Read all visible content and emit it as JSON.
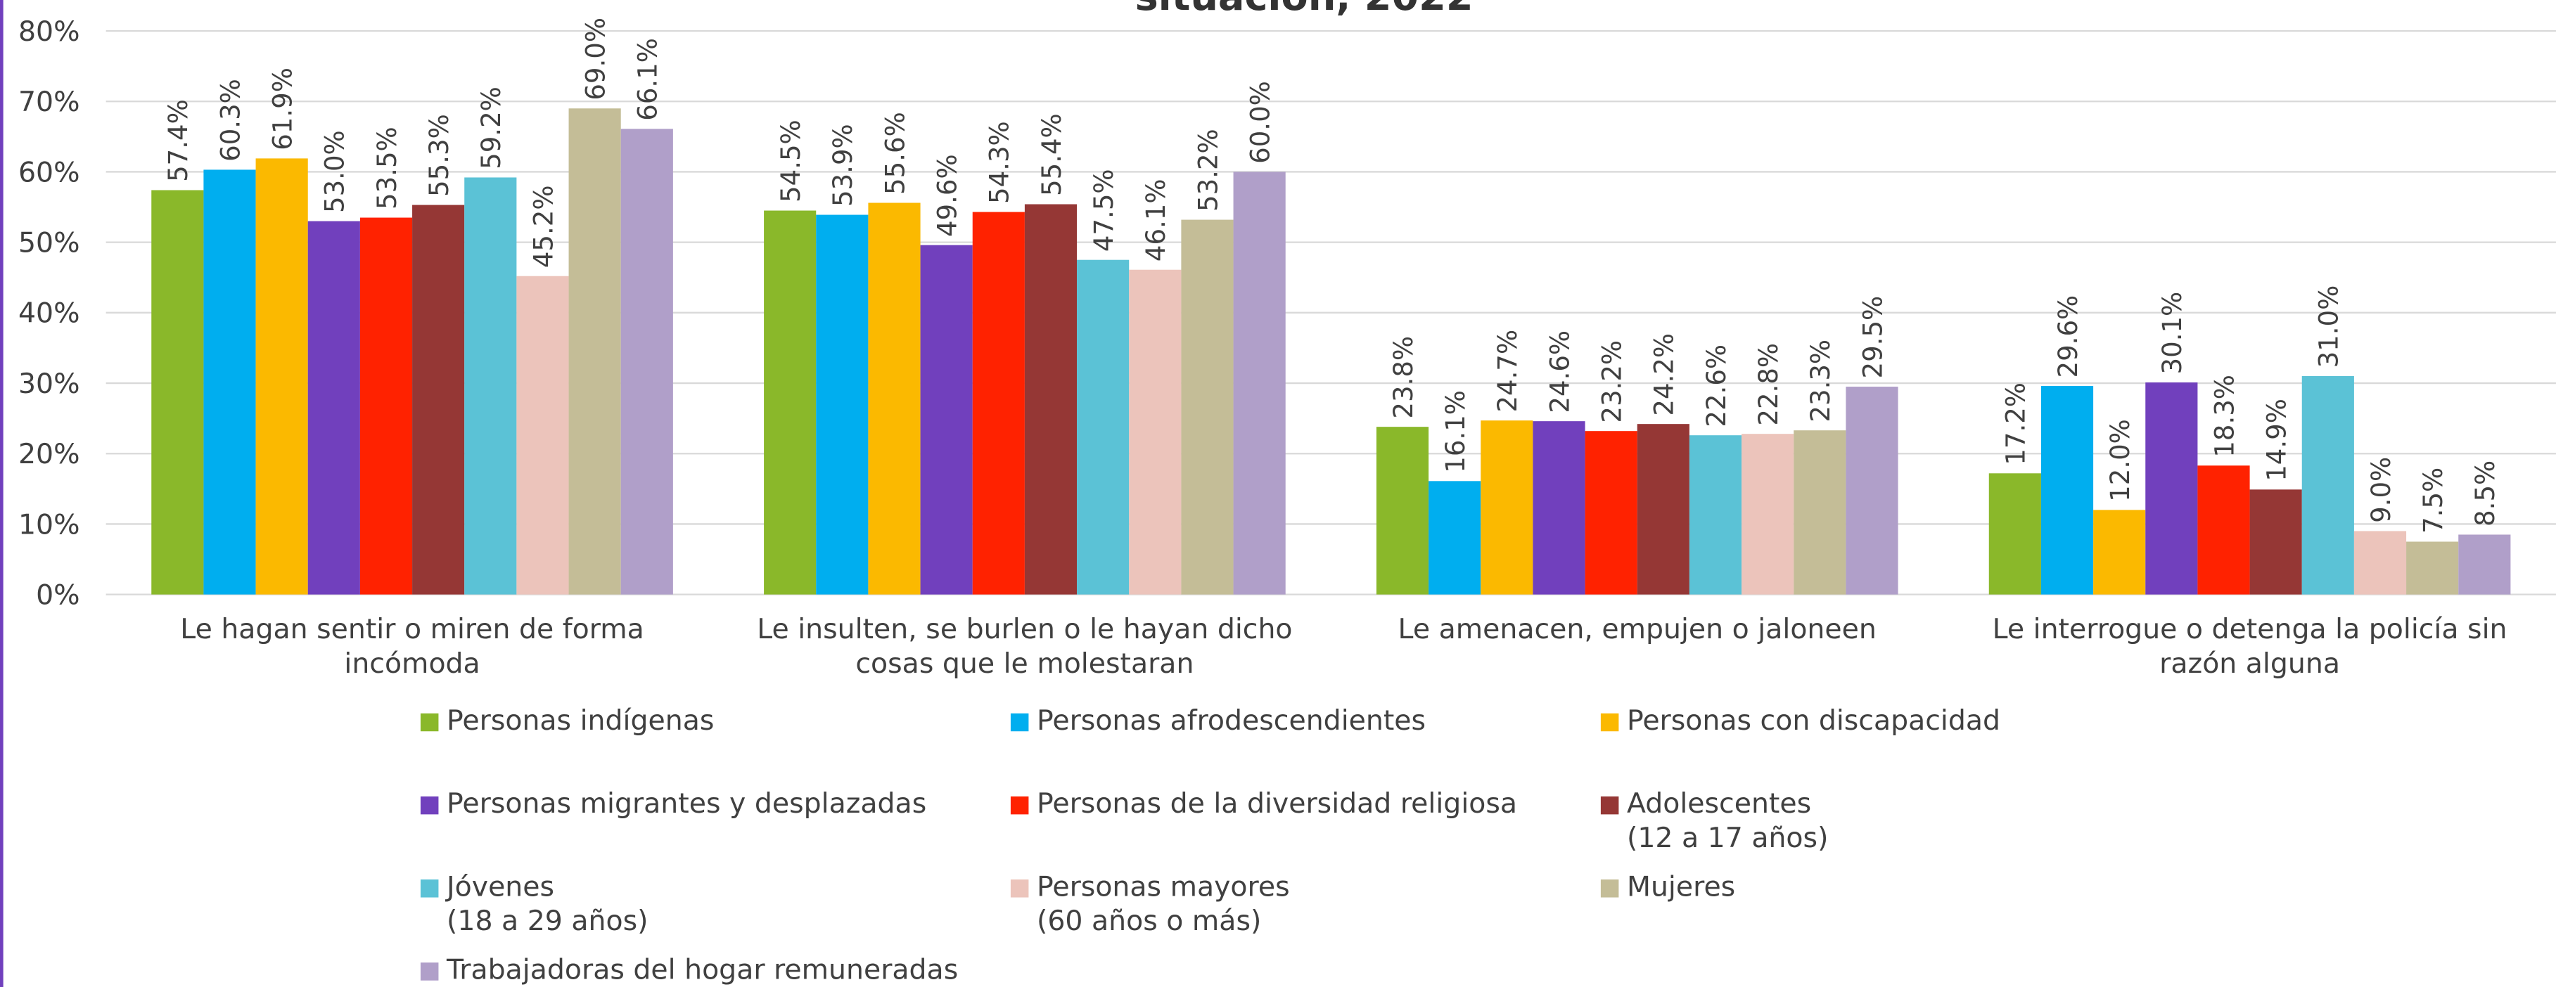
{
  "chart_data": {
    "type": "bar",
    "title": "situación, 2022",
    "categories": [
      "Le hagan sentir o miren de forma\nincómoda",
      "Le insulten, se burlen o le hayan dicho\ncosas que le molestaran",
      "Le amenacen, empujen o jaloneen",
      "Le interrogue o detenga la policía sin\nrazón alguna"
    ],
    "series": [
      {
        "name": "Personas indígenas",
        "color": "#8ab82a",
        "values": [
          57.4,
          54.5,
          23.8,
          17.2
        ],
        "value_labels": [
          "57.4%",
          "54.5%",
          "23.8%",
          "17.2%"
        ]
      },
      {
        "name": "Personas afrodescendientes",
        "color": "#00aeef",
        "values": [
          60.3,
          53.9,
          16.1,
          29.6
        ],
        "value_labels": [
          "60.3%",
          "53.9%",
          "16.1%",
          "29.6%"
        ]
      },
      {
        "name": "Personas con discapacidad",
        "color": "#fbb900",
        "values": [
          61.9,
          55.6,
          24.7,
          12.0
        ],
        "value_labels": [
          "61.9%",
          "55.6%",
          "24.7%",
          "12.0%"
        ]
      },
      {
        "name": "Personas migrantes y desplazadas",
        "color": "#7140bd",
        "values": [
          53.0,
          49.6,
          24.6,
          30.1
        ],
        "value_labels": [
          "53.0%",
          "49.6%",
          "24.6%",
          "30.1%"
        ]
      },
      {
        "name": "Personas de la diversidad religiosa",
        "color": "#ff2200",
        "values": [
          53.5,
          54.3,
          23.2,
          18.3
        ],
        "value_labels": [
          "53.5%",
          "54.3%",
          "23.2%",
          "18.3%"
        ]
      },
      {
        "name": "Adolescentes\n(12 a 17 años)",
        "color": "#953735",
        "values": [
          55.3,
          55.4,
          24.2,
          14.9
        ],
        "value_labels": [
          "55.3%",
          "55.4%",
          "24.2%",
          "14.9%"
        ]
      },
      {
        "name": "Jóvenes\n(18 a 29 años)",
        "color": "#5bc2d6",
        "values": [
          59.2,
          47.5,
          22.6,
          31.0
        ],
        "value_labels": [
          "59.2%",
          "47.5%",
          "22.6%",
          "31.0%"
        ]
      },
      {
        "name": "Personas mayores\n(60 años o más)",
        "color": "#ecc4bb",
        "values": [
          45.2,
          46.1,
          22.8,
          9.0
        ],
        "value_labels": [
          "45.2%",
          "46.1%",
          "22.8%",
          "9.0%"
        ]
      },
      {
        "name": "Mujeres",
        "color": "#c4bd97",
        "values": [
          69.0,
          53.2,
          23.3,
          7.5
        ],
        "value_labels": [
          "69.0%",
          "53.2%",
          "23.3%",
          "7.5%"
        ]
      },
      {
        "name": "Trabajadoras del hogar remuneradas",
        "color": "#b09fc9",
        "values": [
          66.1,
          60.0,
          29.5,
          8.5
        ],
        "value_labels": [
          "66.1%",
          "60.0%",
          "29.5%",
          "8.5%"
        ]
      }
    ],
    "ylim": [
      0,
      80
    ],
    "yticks": [
      {
        "value": 0,
        "label": "0%"
      },
      {
        "value": 10,
        "label": "10%"
      },
      {
        "value": 20,
        "label": "20%"
      },
      {
        "value": 30,
        "label": "30%"
      },
      {
        "value": 40,
        "label": "40%"
      },
      {
        "value": 50,
        "label": "50%"
      },
      {
        "value": 60,
        "label": "60%"
      },
      {
        "value": 70,
        "label": "70%"
      },
      {
        "value": 80,
        "label": "80%"
      }
    ],
    "grid": true
  }
}
